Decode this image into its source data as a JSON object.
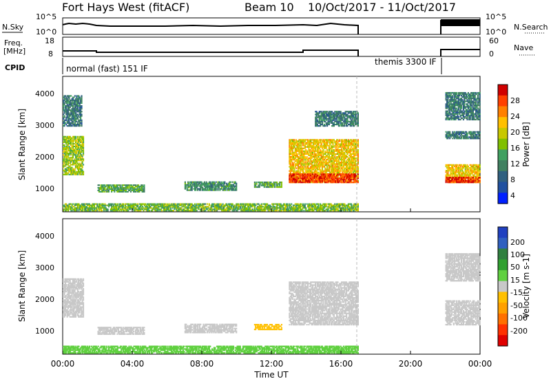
{
  "header": {
    "station": "Fort Hays West (fitACF)",
    "beam": "Beam 10",
    "dates": "10/Oct/2017 - 11/Oct/2017"
  },
  "left_labels": {
    "nsky": "N.Sky",
    "freq_1": "Freq.",
    "freq_2": "[MHz]",
    "cpid": "CPID"
  },
  "right_labels": {
    "nsearch": "N.Search",
    "nave": "Nave"
  },
  "ticks": {
    "noise_left": [
      "10^5",
      "10^0"
    ],
    "noise_right": [
      "10^5",
      "10^0"
    ],
    "freq_left": [
      "18",
      "8"
    ],
    "freq_right": [
      "60",
      "0"
    ],
    "range": [
      "4000",
      "3000",
      "2000",
      "1000"
    ],
    "time": [
      "00:00",
      "04:00",
      "08:00",
      "12:00",
      "16:00",
      "20:00",
      "00:00"
    ]
  },
  "cpid": {
    "mode_1": "normal (fast) 151 IF",
    "mode_2": "themis 3300 IF"
  },
  "axes": {
    "range_label": "Slant Range [km]",
    "time_label": "Time UT"
  },
  "colorbars": {
    "power": {
      "label": "Power [dB]",
      "ticks": [
        "28",
        "24",
        "20",
        "16",
        "12",
        "8",
        "4"
      ],
      "colors": [
        "#d00000",
        "#ff4000",
        "#ff8000",
        "#ffc000",
        "#c8c800",
        "#80c000",
        "#40a060",
        "#408060",
        "#306080",
        "#2050a0",
        "#0020ff"
      ]
    },
    "velocity": {
      "label": "Velocity [m s-1]",
      "ticks": [
        "200",
        "100",
        "50",
        "15",
        "-15",
        "-50",
        "-100",
        "-200"
      ],
      "colors": [
        "#2040c0",
        "#3060c0",
        "#308040",
        "#30a030",
        "#60d040",
        "#c8c8c8",
        "#ffc000",
        "#ffa000",
        "#ff7000",
        "#ff3000",
        "#e00000"
      ]
    }
  },
  "chart_data": [
    {
      "type": "heatmap",
      "title": "Power",
      "xlabel": "Time UT",
      "ylabel": "Slant Range [km]",
      "xlim": [
        0,
        24
      ],
      "ylim": [
        180,
        4500
      ],
      "colorbar": {
        "label": "Power [dB]",
        "range": [
          0,
          30
        ]
      },
      "data_gap_hours": [
        17.0,
        21.8
      ],
      "echo_regions": [
        {
          "t0": 0.0,
          "t1": 1.2,
          "r0": 1350,
          "r1": 2600,
          "level": 16
        },
        {
          "t0": 0.0,
          "t1": 1.1,
          "r0": 2900,
          "r1": 3900,
          "level": 8
        },
        {
          "t0": 2.0,
          "t1": 4.7,
          "r0": 800,
          "r1": 1050,
          "level": 12
        },
        {
          "t0": 7.0,
          "t1": 10.0,
          "r0": 850,
          "r1": 1150,
          "level": 10
        },
        {
          "t0": 11.0,
          "t1": 12.6,
          "r0": 950,
          "r1": 1150,
          "level": 12
        },
        {
          "t0": 0.0,
          "t1": 17.0,
          "r0": 200,
          "r1": 450,
          "level": 14
        },
        {
          "t0": 13.0,
          "t1": 17.0,
          "r0": 1100,
          "r1": 2500,
          "level": 20
        },
        {
          "t0": 13.0,
          "t1": 17.0,
          "r0": 1100,
          "r1": 1400,
          "level": 28
        },
        {
          "t0": 14.5,
          "t1": 17.0,
          "r0": 2900,
          "r1": 3400,
          "level": 8
        },
        {
          "t0": 22.0,
          "t1": 24.0,
          "r0": 1100,
          "r1": 1700,
          "level": 20
        },
        {
          "t0": 22.0,
          "t1": 24.0,
          "r0": 1100,
          "r1": 1300,
          "level": 28
        },
        {
          "t0": 22.0,
          "t1": 24.0,
          "r0": 2500,
          "r1": 2750,
          "level": 8
        },
        {
          "t0": 22.0,
          "t1": 24.0,
          "r0": 3100,
          "r1": 4000,
          "level": 8
        }
      ]
    },
    {
      "type": "heatmap",
      "title": "Velocity",
      "xlabel": "Time UT",
      "ylabel": "Slant Range [km]",
      "xlim": [
        0,
        24
      ],
      "ylim": [
        180,
        4500
      ],
      "colorbar": {
        "label": "Velocity [m s-1]",
        "range": [
          -250,
          250
        ]
      },
      "data_gap_hours": [
        17.0,
        21.8
      ],
      "echo_regions": [
        {
          "t0": 0.0,
          "t1": 1.2,
          "r0": 1350,
          "r1": 2600,
          "velocity": 0
        },
        {
          "t0": 2.0,
          "t1": 4.7,
          "r0": 800,
          "r1": 1050,
          "velocity": -10
        },
        {
          "t0": 7.0,
          "t1": 10.0,
          "r0": 850,
          "r1": 1150,
          "velocity": 0
        },
        {
          "t0": 11.0,
          "t1": 12.6,
          "r0": 950,
          "r1": 1150,
          "velocity": -40
        },
        {
          "t0": 0.0,
          "t1": 17.0,
          "r0": 200,
          "r1": 450,
          "velocity": 30
        },
        {
          "t0": 13.0,
          "t1": 17.0,
          "r0": 1100,
          "r1": 2500,
          "velocity": 0
        },
        {
          "t0": 22.0,
          "t1": 24.0,
          "r0": 1100,
          "r1": 1900,
          "velocity": 0
        },
        {
          "t0": 22.0,
          "t1": 24.0,
          "r0": 2500,
          "r1": 3400,
          "velocity": -20
        }
      ]
    }
  ]
}
